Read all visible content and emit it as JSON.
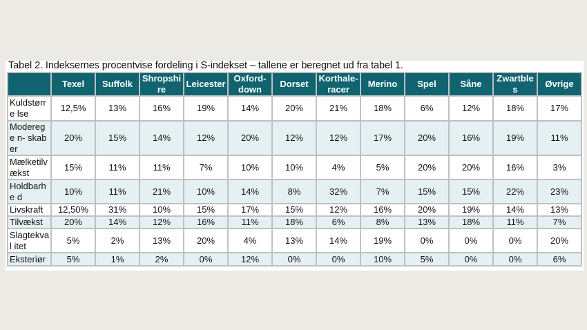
{
  "caption": "Tabel 2. Indeksernes procentvise fordeling i S-indekset – tallene er beregnet ud fra tabel 1.",
  "colors": {
    "header_bg": "#0f6470",
    "header_text": "#ffffff",
    "row_tint": "#e5f0f3",
    "row_white": "#ffffff",
    "grid_line": "#c0c0c0",
    "page_bg": "#ebeae5"
  },
  "table": {
    "columns": [
      "",
      "Texel",
      "Suffolk",
      "Shropshire",
      "Leicester",
      "Oxford-down",
      "Dorset",
      "Korthale-racer",
      "Merino",
      "Spel",
      "Såne",
      "Zwartbles",
      "Øvrige"
    ],
    "column_display": [
      "",
      "Texel",
      "Suffolk",
      "Shropshi re",
      "Leicester",
      "Oxford- down",
      "Dorset",
      "Korthale- racer",
      "Merino",
      "Spel",
      "Såne",
      "Zwartble s",
      "Øvrige"
    ],
    "rows": [
      {
        "label": "Kuldstørrelse",
        "label_display": "Kuldstørre lse",
        "values": [
          "12,5%",
          "13%",
          "16%",
          "19%",
          "14%",
          "20%",
          "21%",
          "18%",
          "6%",
          "12%",
          "18%",
          "17%"
        ]
      },
      {
        "label": "Moderegenskaber",
        "label_display": "Moderege n- skaber",
        "values": [
          "20%",
          "15%",
          "14%",
          "12%",
          "20%",
          "12%",
          "12%",
          "17%",
          "20%",
          "16%",
          "19%",
          "11%"
        ]
      },
      {
        "label": "Mælketilvækst",
        "label_display": "Mælketilv ækst",
        "values": [
          "15%",
          "11%",
          "11%",
          "7%",
          "10%",
          "10%",
          "4%",
          "5%",
          "20%",
          "20%",
          "16%",
          "3%"
        ]
      },
      {
        "label": "Holdbarhed",
        "label_display": "Holdbarhe d",
        "values": [
          "10%",
          "11%",
          "21%",
          "10%",
          "14%",
          "8%",
          "32%",
          "7%",
          "15%",
          "15%",
          "22%",
          "23%"
        ]
      },
      {
        "label": "Livskraft",
        "label_display": "Livskraft",
        "values": [
          "12,50%",
          "31%",
          "10%",
          "15%",
          "17%",
          "15%",
          "12%",
          "16%",
          "20%",
          "19%",
          "14%",
          "13%"
        ]
      },
      {
        "label": "Tilvækst",
        "label_display": "Tilvækst",
        "values": [
          "20%",
          "14%",
          "12%",
          "16%",
          "11%",
          "18%",
          "6%",
          "8%",
          "13%",
          "18%",
          "11%",
          "7%"
        ]
      },
      {
        "label": "Slagtekvalitet",
        "label_display": "Slagtekval itet",
        "values": [
          "5%",
          "2%",
          "13%",
          "20%",
          "4%",
          "13%",
          "14%",
          "19%",
          "0%",
          "0%",
          "0%",
          "20%"
        ]
      },
      {
        "label": "Eksteriør",
        "label_display": "Eksteriør",
        "values": [
          "5%",
          "1%",
          "2%",
          "0%",
          "12%",
          "0%",
          "0%",
          "10%",
          "5%",
          "0%",
          "0%",
          "6%"
        ]
      }
    ]
  }
}
